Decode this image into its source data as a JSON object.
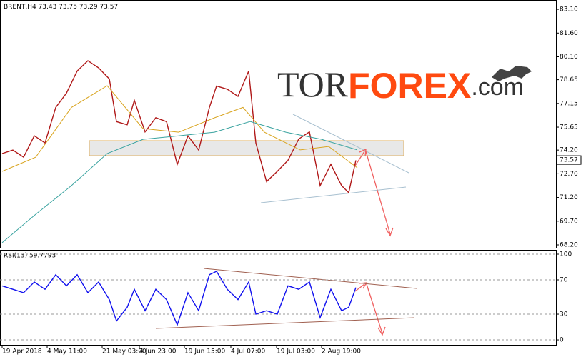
{
  "chart_data": [
    {
      "type": "line",
      "title": "BRENT,H4",
      "subtitle": "73.43 73.75 73.29 73.57",
      "watermark": {
        "prefix": "TOR",
        "main": "FOREX",
        "suffix": ".com"
      },
      "last_price": 73.57,
      "xlim": [
        0,
        389
      ],
      "ylim": [
        68.02,
        83.6
      ],
      "yticks": [
        {
          "value": 83.1,
          "label": "83.10"
        },
        {
          "value": 81.6,
          "label": "81.60"
        },
        {
          "value": 80.1,
          "label": "80.10"
        },
        78.65,
        77.15,
        75.65,
        {
          "value": 74.2,
          "label": "74.20"
        },
        {
          "value": 72.7,
          "label": "72.70"
        },
        {
          "value": 71.2,
          "label": "71.20"
        },
        {
          "value": 69.7,
          "label": "69.70"
        },
        {
          "value": 68.2,
          "label": "68.20"
        }
      ],
      "grid": false,
      "series": [
        {
          "color": "#b01818",
          "x": [
            1.5,
            9,
            16.5,
            24,
            31.5,
            39,
            46.5,
            54,
            61.5,
            69,
            76.5,
            81.5,
            89,
            94,
            101.5,
            109,
            116.5,
            124,
            131.5,
            139,
            146.5,
            151.5,
            159,
            166.5,
            174,
            179,
            186.5,
            194,
            201.5,
            209,
            216.5,
            224,
            231.5,
            239,
            244,
            249
          ],
          "values": [
            73.98,
            74.2,
            73.75,
            75.1,
            74.65,
            76.9,
            77.8,
            79.2,
            79.85,
            79.4,
            78.7,
            76.0,
            75.8,
            77.35,
            75.35,
            76.25,
            76.0,
            73.3,
            75.1,
            74.2,
            76.9,
            78.25,
            78.05,
            77.6,
            79.2,
            74.65,
            72.2,
            72.85,
            73.55,
            74.9,
            75.35,
            71.95,
            73.3,
            71.95,
            71.5,
            73.55
          ]
        },
        {
          "color": "#d9a520",
          "x": [
            1.5,
            25,
            50,
            75,
            100,
            125,
            150,
            170,
            185,
            210,
            230,
            250
          ],
          "values": [
            72.85,
            73.75,
            76.9,
            78.27,
            75.56,
            75.33,
            76.24,
            76.9,
            75.33,
            74.21,
            74.43,
            73.08
          ]
        },
        {
          "color": "#3aa3a0",
          "x": [
            1.5,
            25,
            50,
            75,
            100,
            125,
            150,
            175,
            200,
            225,
            250
          ],
          "values": [
            68.34,
            70.14,
            71.95,
            73.98,
            74.88,
            75.1,
            75.33,
            76.01,
            75.33,
            74.88,
            74.21
          ]
        }
      ]
    },
    {
      "type": "line",
      "title": "RSI(13) 59.7793",
      "xlim": [
        0,
        389
      ],
      "ylim": [
        -5.8,
        105
      ],
      "yticks": [
        100,
        70,
        30,
        0
      ],
      "grid": true,
      "xticks": [
        {
          "value": 1.5,
          "label": "19 Apr 2018"
        },
        {
          "value": 33,
          "label": "4 May 11:00"
        },
        {
          "value": 71.5,
          "label": "21 May 03:00"
        },
        {
          "value": 97.5,
          "label": "4 Jun 23:00"
        },
        {
          "value": 129,
          "label": "19 Jun 15:00"
        },
        {
          "value": 161.5,
          "label": "4 Jul 07:00"
        },
        {
          "value": 193.5,
          "label": "19 Jul 03:00"
        },
        {
          "value": 225,
          "label": "2 Aug 19:00"
        }
      ],
      "series": [
        {
          "color": "#1010ee",
          "x": [
            1.5,
            9,
            16.5,
            24,
            31.5,
            39,
            46.5,
            54,
            61.5,
            69,
            76.5,
            81.5,
            89,
            94,
            101.5,
            109,
            116.5,
            124,
            131.5,
            139,
            146.5,
            151.5,
            159,
            166.5,
            174,
            179,
            186.5,
            194,
            201.5,
            209,
            216.5,
            224,
            231.5,
            239,
            244,
            249
          ],
          "values": [
            63,
            59,
            55,
            67.5,
            59,
            76,
            63,
            76,
            55,
            67.5,
            47,
            22,
            38,
            59,
            34,
            59,
            47,
            17.5,
            55,
            34,
            76,
            80,
            59,
            47,
            67.5,
            30,
            34,
            30,
            63,
            59,
            67.5,
            26,
            59,
            34,
            38,
            61
          ]
        }
      ]
    }
  ]
}
